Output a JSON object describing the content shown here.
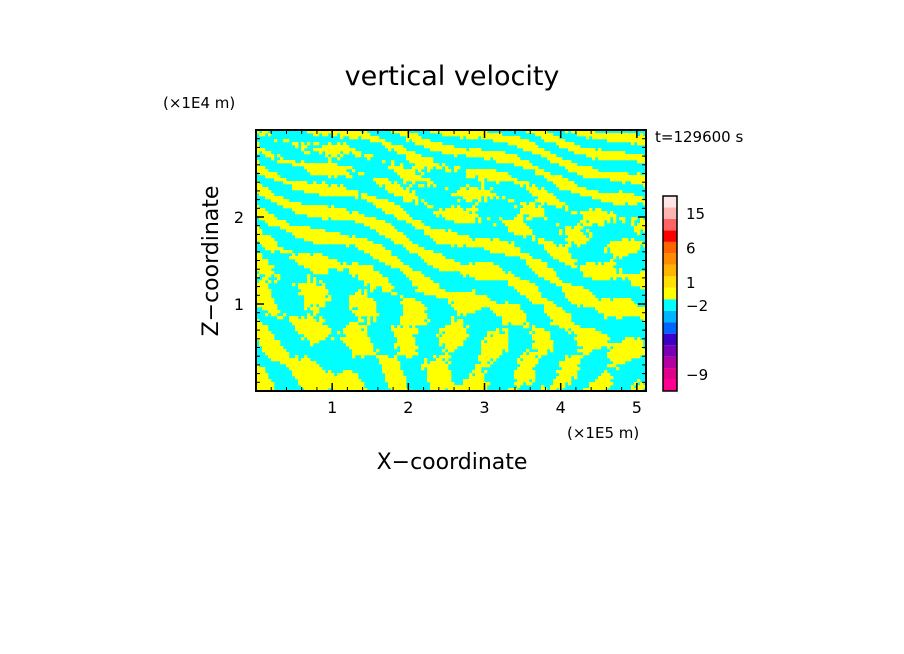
{
  "chart_data": {
    "type": "heatmap",
    "title": "vertical velocity",
    "xlabel": "X−coordinate",
    "ylabel": "Z−coordinate",
    "x_unit_label": "(×1E5 m)",
    "y_unit_label": "(×1E4 m)",
    "time_label": "t=129600 s",
    "xlim": [
      0,
      5.12
    ],
    "ylim": [
      0,
      3.0
    ],
    "x_ticks": [
      1,
      2,
      3,
      4,
      5
    ],
    "x_tick_labels": [
      "1",
      "2",
      "3",
      "4",
      "5"
    ],
    "y_ticks": [
      1,
      2
    ],
    "y_tick_labels": [
      "1",
      "2"
    ],
    "colors": {
      "positive_field": "#ffff00",
      "negative_field": "#00ffff",
      "axes": "#000000"
    },
    "colorbar": {
      "levels": [
        {
          "color": "#ff0090"
        },
        {
          "color": "#e0008c",
          "label": "−9"
        },
        {
          "color": "#b400a0"
        },
        {
          "color": "#7800b4"
        },
        {
          "color": "#3c00c8"
        },
        {
          "color": "#0064ff"
        },
        {
          "color": "#00b4ff"
        },
        {
          "color": "#00ffff",
          "label": "−2"
        },
        {
          "color": "#ffff00"
        },
        {
          "color": "#ffe000",
          "label": "1"
        },
        {
          "color": "#ffb400"
        },
        {
          "color": "#ff8c00"
        },
        {
          "color": "#ff6400",
          "label": "6"
        },
        {
          "color": "#ff0000"
        },
        {
          "color": "#ff6464"
        },
        {
          "color": "#ffb4b4",
          "label": "15"
        },
        {
          "color": "#ffe6e6"
        }
      ]
    }
  }
}
